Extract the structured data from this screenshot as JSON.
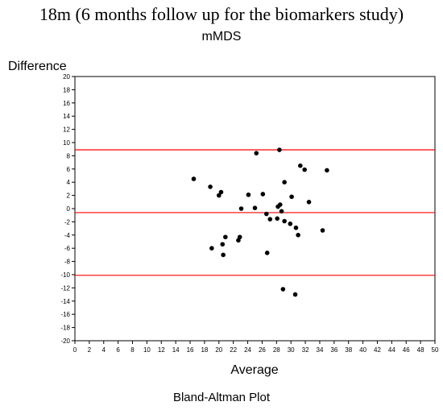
{
  "page": {
    "title": "18m (6 months follow up for the biomarkers study)",
    "subtitle": "mMDS",
    "caption": "Bland-Altman Plot"
  },
  "chart_data": {
    "type": "scatter",
    "xlabel": "Average",
    "ylabel": "Difference",
    "xlim": [
      0,
      50
    ],
    "ylim": [
      -20,
      20
    ],
    "x_ticks": [
      0,
      2,
      4,
      6,
      8,
      10,
      12,
      14,
      16,
      18,
      20,
      22,
      24,
      26,
      28,
      30,
      32,
      34,
      36,
      38,
      40,
      42,
      44,
      46,
      48,
      50
    ],
    "y_ticks": [
      20,
      18,
      16,
      14,
      12,
      10,
      8,
      6,
      4,
      2,
      0,
      -2,
      -4,
      -6,
      -8,
      -10,
      -12,
      -14,
      -16,
      -18,
      -20
    ],
    "grid": false,
    "reference_lines": [
      {
        "y": 8.9,
        "color": "#ff0000"
      },
      {
        "y": -0.6,
        "color": "#ff0000"
      },
      {
        "y": -10.1,
        "color": "#ff0000"
      }
    ],
    "point_color": "#000000",
    "points": [
      {
        "x": 16.5,
        "y": 4.5
      },
      {
        "x": 18.8,
        "y": 3.3
      },
      {
        "x": 19.0,
        "y": -6.0
      },
      {
        "x": 20.0,
        "y": 2.0
      },
      {
        "x": 20.3,
        "y": 2.5
      },
      {
        "x": 20.5,
        "y": -5.4
      },
      {
        "x": 20.6,
        "y": -7.0
      },
      {
        "x": 20.9,
        "y": -4.3
      },
      {
        "x": 22.7,
        "y": -4.8
      },
      {
        "x": 22.9,
        "y": -4.3
      },
      {
        "x": 23.1,
        "y": 0.0
      },
      {
        "x": 24.1,
        "y": 2.1
      },
      {
        "x": 25.0,
        "y": 0.1
      },
      {
        "x": 25.2,
        "y": 8.4
      },
      {
        "x": 26.1,
        "y": 2.2
      },
      {
        "x": 26.6,
        "y": -0.8
      },
      {
        "x": 26.7,
        "y": -6.7
      },
      {
        "x": 27.1,
        "y": -1.6
      },
      {
        "x": 28.1,
        "y": -1.5
      },
      {
        "x": 28.2,
        "y": 0.3
      },
      {
        "x": 28.4,
        "y": 8.9
      },
      {
        "x": 28.5,
        "y": 0.6
      },
      {
        "x": 28.7,
        "y": -0.4
      },
      {
        "x": 28.9,
        "y": -12.2
      },
      {
        "x": 29.1,
        "y": -1.9
      },
      {
        "x": 29.1,
        "y": 4.0
      },
      {
        "x": 29.9,
        "y": -2.3
      },
      {
        "x": 30.1,
        "y": 1.8
      },
      {
        "x": 30.6,
        "y": -13.0
      },
      {
        "x": 30.7,
        "y": -2.9
      },
      {
        "x": 31.0,
        "y": -4.0
      },
      {
        "x": 31.3,
        "y": 6.5
      },
      {
        "x": 31.9,
        "y": 5.9
      },
      {
        "x": 32.5,
        "y": 1.0
      },
      {
        "x": 34.4,
        "y": -3.3
      },
      {
        "x": 35.0,
        "y": 5.8
      }
    ]
  }
}
